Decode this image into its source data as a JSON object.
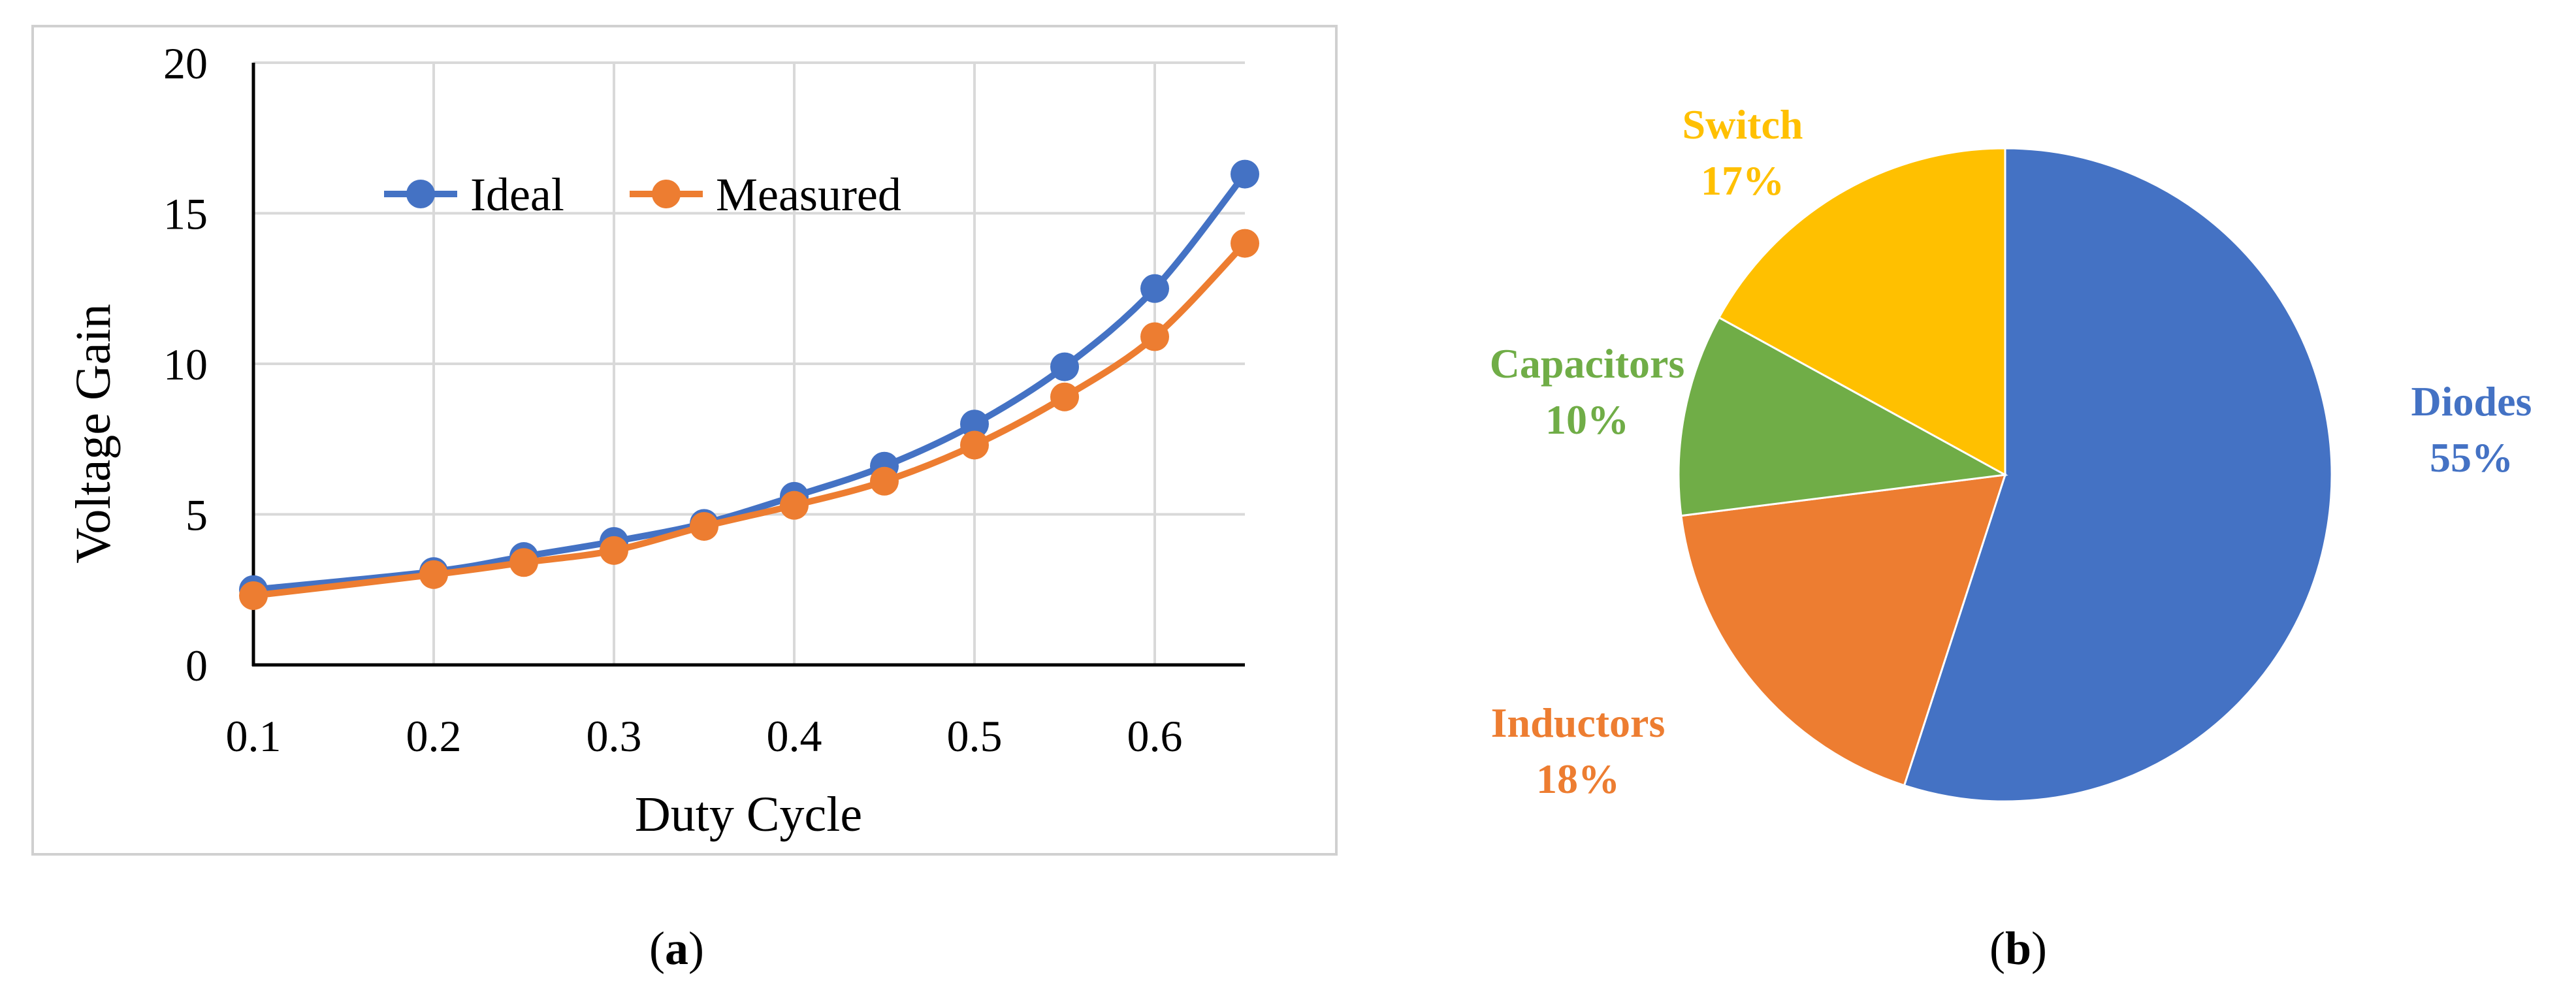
{
  "chart_data": [
    {
      "type": "line",
      "caption_letter": "a",
      "xlabel": "Duty Cycle",
      "ylabel": "Voltage Gain",
      "xlim": [
        0.1,
        0.65
      ],
      "ylim": [
        0,
        20
      ],
      "x_ticks": [
        "0.1",
        "0.2",
        "0.3",
        "0.4",
        "0.5",
        "0.6"
      ],
      "y_ticks": [
        "0",
        "5",
        "10",
        "15",
        "20"
      ],
      "grid": true,
      "legend_position": "top-center",
      "x": [
        0.1,
        0.2,
        0.25,
        0.3,
        0.35,
        0.4,
        0.45,
        0.5,
        0.55,
        0.6,
        0.65
      ],
      "series": [
        {
          "name": "Ideal",
          "color": "#4472C4",
          "values": [
            2.5,
            3.1,
            3.6,
            4.1,
            4.7,
            5.6,
            6.6,
            8.0,
            9.9,
            12.5,
            16.3
          ]
        },
        {
          "name": "Measured",
          "color": "#ED7D31",
          "values": [
            2.3,
            3.0,
            3.4,
            3.8,
            4.6,
            5.3,
            6.1,
            7.3,
            8.9,
            10.9,
            14.0
          ]
        }
      ]
    },
    {
      "type": "pie",
      "caption_letter": "b",
      "start": "12 o'clock",
      "direction": "clockwise",
      "slices": [
        {
          "label": "Diodes",
          "value": 55,
          "pct": "55%",
          "color": "#4472C4"
        },
        {
          "label": "Inductors",
          "value": 18,
          "pct": "18%",
          "color": "#ED7D31"
        },
        {
          "label": "Capacitors",
          "value": 10,
          "pct": "10%",
          "color": "#70AD47"
        },
        {
          "label": "Switch",
          "value": 17,
          "pct": "17%",
          "color": "#FFC000"
        }
      ]
    }
  ]
}
